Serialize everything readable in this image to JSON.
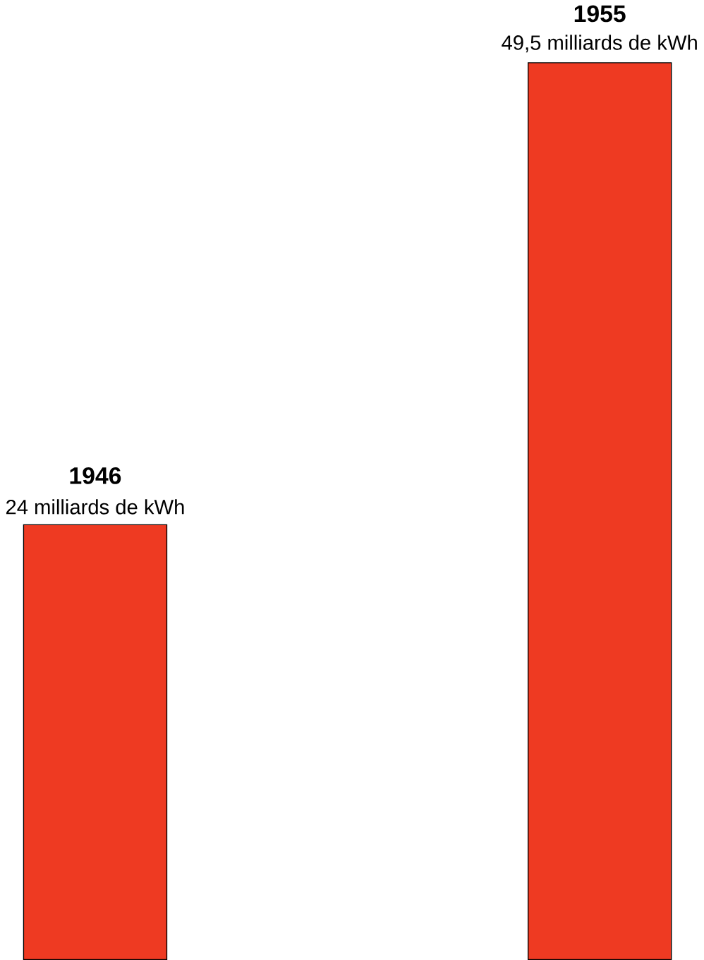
{
  "chart_data": {
    "type": "bar",
    "categories": [
      "1946",
      "1955"
    ],
    "values": [
      24,
      49.5
    ],
    "value_labels": [
      "24 milliards de kWh",
      "49,5 milliards de kWh"
    ],
    "color": "#ee3a22"
  }
}
